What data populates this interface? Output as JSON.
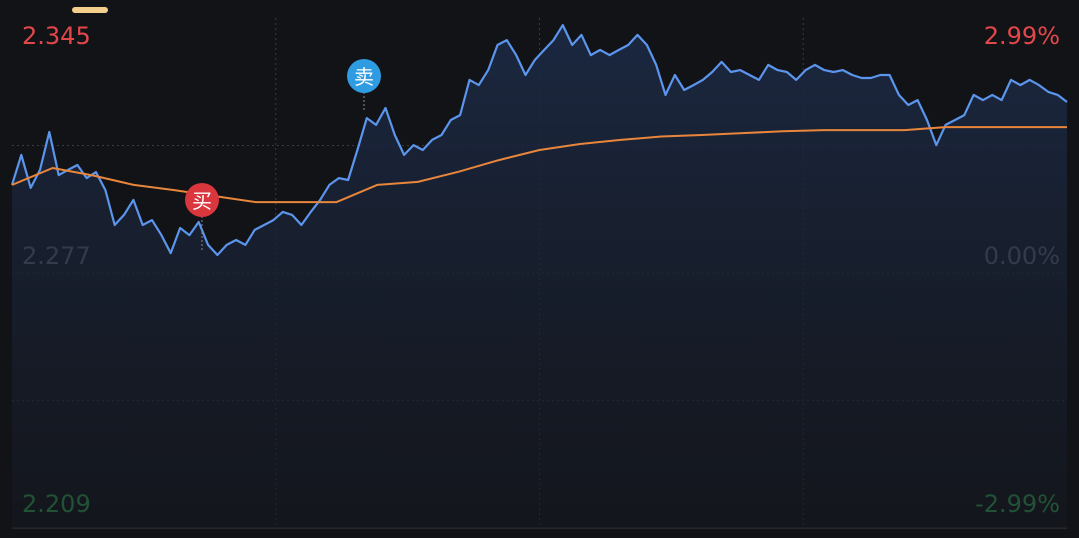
{
  "chart_data": {
    "type": "line",
    "ylim": [
      2.209,
      2.345
    ],
    "yticks": [
      2.209,
      2.277,
      2.345
    ],
    "y2lim": [
      -2.99,
      2.99
    ],
    "y2ticks": [
      {
        "value": -2.99,
        "label": "-2.99%"
      },
      {
        "value": 0,
        "label": "0.00%"
      },
      {
        "value": 2.99,
        "label": "2.99%"
      }
    ],
    "grid": true,
    "annotations": [
      "买",
      "卖"
    ],
    "series": [
      {
        "color": "#5b95ec",
        "values": [
          2.3005,
          2.3085,
          2.2997,
          2.3045,
          2.3146,
          2.3031,
          2.3045,
          2.3058,
          2.3023,
          2.3039,
          2.2991,
          2.2898,
          2.2925,
          2.2965,
          2.2898,
          2.2911,
          2.2871,
          2.2823,
          2.289,
          2.2871,
          2.2906,
          2.2845,
          2.2818,
          2.2845,
          2.2858,
          2.2845,
          2.2885,
          2.2898,
          2.2911,
          2.2933,
          2.2925,
          2.2898,
          2.2933,
          2.2965,
          2.3005,
          2.3023,
          2.3018,
          2.3098,
          2.3183,
          2.3165,
          2.321,
          2.3138,
          2.3085,
          2.3111,
          2.3098,
          2.3125,
          2.3138,
          2.3178,
          2.3191,
          2.3285,
          2.3271,
          2.3311,
          2.3378,
          2.3391,
          2.3351,
          2.3298,
          2.3338,
          2.3365,
          2.3391,
          2.3431,
          2.3378,
          2.3405,
          2.3351,
          2.3365,
          2.3351,
          2.3365,
          2.3378,
          2.3405,
          2.3378,
          2.3325,
          2.3245,
          2.3298,
          2.3258,
          2.3271,
          2.3285,
          2.3306,
          2.3333,
          2.3306,
          2.3311,
          2.3298,
          2.3285,
          2.3325,
          2.3311,
          2.3306,
          2.3285,
          2.3311,
          2.3325,
          2.3311,
          2.3306,
          2.3311,
          2.3298,
          2.329,
          2.329,
          2.3298,
          2.3298,
          2.3245,
          2.3218,
          2.3231,
          2.3178,
          2.3111,
          2.3165,
          2.3178,
          2.3191,
          2.3245,
          2.3231,
          2.3245,
          2.3231,
          2.3285,
          2.3271,
          2.3285,
          2.3271,
          2.3253,
          2.3245,
          2.3226
        ]
      },
      {
        "color": "#e8863c",
        "values": [
          2.3005,
          2.305,
          2.303,
          2.3005,
          2.2991,
          2.2975,
          2.2959,
          2.2959,
          2.2959,
          2.3005,
          2.3013,
          2.304,
          2.3071,
          2.3098,
          2.3114,
          2.3125,
          2.3134,
          2.3138,
          2.3143,
          2.3148,
          2.3151,
          2.3151,
          2.3151,
          2.3159,
          2.3159,
          2.3159,
          2.3159
        ]
      }
    ]
  }
}
